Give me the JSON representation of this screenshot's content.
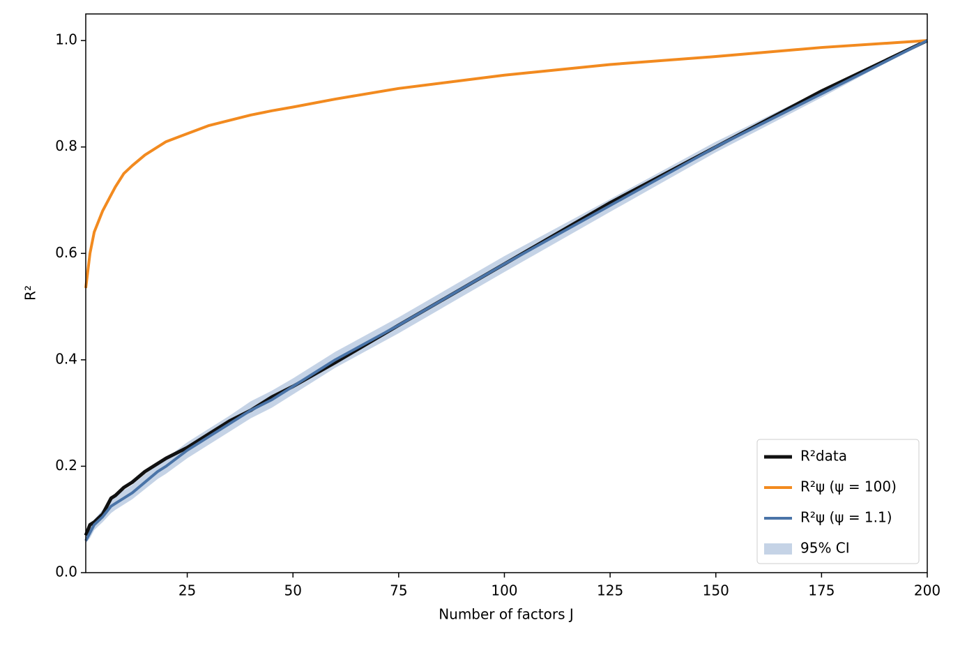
{
  "chart_data": {
    "type": "line",
    "x_label": "Number of factors J",
    "y_label": "R²",
    "x": [
      1,
      2,
      3,
      5,
      7,
      8,
      10,
      12,
      15,
      18,
      20,
      25,
      30,
      35,
      40,
      45,
      50,
      60,
      75,
      100,
      125,
      150,
      175,
      200
    ],
    "band": {
      "name": "95% CI",
      "color": "#c5d3e6",
      "lower": [
        0.055,
        0.065,
        0.08,
        0.095,
        0.112,
        0.118,
        0.128,
        0.138,
        0.157,
        0.176,
        0.186,
        0.215,
        0.24,
        0.265,
        0.29,
        0.31,
        0.335,
        0.385,
        0.45,
        0.565,
        0.678,
        0.79,
        0.893,
        1.0
      ],
      "upper": [
        0.07,
        0.09,
        0.1,
        0.118,
        0.14,
        0.145,
        0.155,
        0.165,
        0.185,
        0.205,
        0.215,
        0.245,
        0.27,
        0.295,
        0.322,
        0.342,
        0.365,
        0.415,
        0.48,
        0.595,
        0.702,
        0.81,
        0.907,
        1.0
      ]
    },
    "series": [
      {
        "name": "R²data",
        "color": "#111111",
        "width": 5,
        "values": [
          0.07,
          0.09,
          0.095,
          0.11,
          0.14,
          0.145,
          0.16,
          0.17,
          0.19,
          0.205,
          0.215,
          0.235,
          0.26,
          0.285,
          0.305,
          0.33,
          0.35,
          0.395,
          0.465,
          0.58,
          0.695,
          0.8,
          0.905,
          1.0
        ]
      },
      {
        "name": "R²ψ (ψ = 100)",
        "color": "#f28a1f",
        "width": 4,
        "values": [
          0.535,
          0.6,
          0.64,
          0.68,
          0.71,
          0.725,
          0.75,
          0.765,
          0.785,
          0.8,
          0.81,
          0.825,
          0.84,
          0.85,
          0.86,
          0.868,
          0.875,
          0.89,
          0.91,
          0.935,
          0.955,
          0.97,
          0.987,
          1.0
        ]
      },
      {
        "name": "R²ψ (ψ = 1.1)",
        "color": "#4a74a8",
        "width": 4,
        "values": [
          0.06,
          0.075,
          0.09,
          0.105,
          0.125,
          0.13,
          0.14,
          0.15,
          0.17,
          0.19,
          0.2,
          0.23,
          0.255,
          0.28,
          0.305,
          0.325,
          0.35,
          0.4,
          0.465,
          0.58,
          0.69,
          0.8,
          0.9,
          1.0
        ]
      }
    ],
    "xlim": [
      1,
      200
    ],
    "xticks": [
      25,
      50,
      75,
      100,
      125,
      150,
      175,
      200
    ],
    "ylim": [
      0,
      1.05
    ],
    "yticks": [
      {
        "value": 0,
        "label": "0.0"
      },
      {
        "value": 0.2,
        "label": "0.2"
      },
      {
        "value": 0.4,
        "label": "0.4"
      },
      {
        "value": 0.6,
        "label": "0.6"
      },
      {
        "value": 0.8,
        "label": "0.8"
      },
      {
        "value": 1,
        "label": "1.0"
      }
    ],
    "legend": "lower right"
  }
}
